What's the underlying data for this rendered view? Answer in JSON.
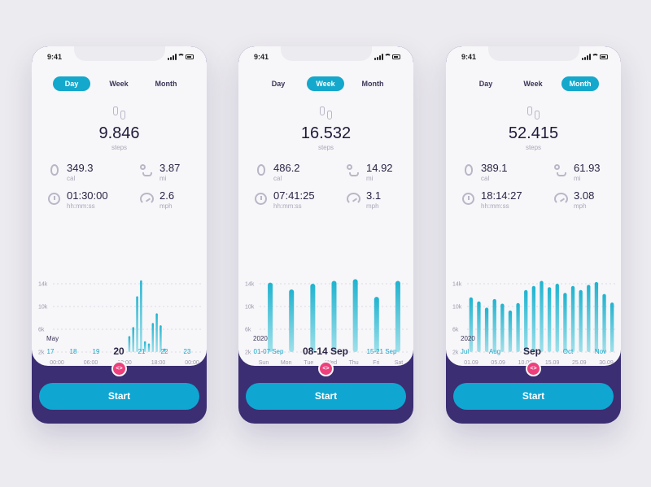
{
  "accent_color": "#13a8cc",
  "bar_color": "#1fb3cf",
  "button_color": "#10a6d2",
  "footer_color": "#3b2e72",
  "toggle_color": "#ee3f7c",
  "icons": [
    "signal-icon",
    "wifi-icon",
    "battery-icon",
    "footsteps-icon",
    "flame-icon",
    "route-icon",
    "stopwatch-icon",
    "speedometer-icon",
    "code-toggle-icon"
  ],
  "phones": [
    {
      "time": "9:41",
      "tabs": [
        {
          "label": "Day"
        },
        {
          "label": "Week"
        },
        {
          "label": "Month"
        }
      ],
      "active_tab": 0,
      "steps": "9.846",
      "steps_label": "steps",
      "stats": [
        {
          "value": "349.3",
          "unit": "cal"
        },
        {
          "value": "3.87",
          "unit": "mi"
        },
        {
          "value": "01:30:00",
          "unit": "hh:mm:ss"
        },
        {
          "value": "2.6",
          "unit": "mph"
        }
      ],
      "period": {
        "year": "May",
        "items": [
          {
            "label": "17"
          },
          {
            "label": "18"
          },
          {
            "label": "19"
          },
          {
            "label": "20"
          },
          {
            "label": "21"
          },
          {
            "label": "22"
          },
          {
            "label": "23"
          }
        ],
        "selected": 3
      },
      "toggle_label": "<>",
      "start_label": "Start"
    },
    {
      "time": "9:41",
      "tabs": [
        {
          "label": "Day"
        },
        {
          "label": "Week"
        },
        {
          "label": "Month"
        }
      ],
      "active_tab": 1,
      "steps": "16.532",
      "steps_label": "steps",
      "stats": [
        {
          "value": "486.2",
          "unit": "cal"
        },
        {
          "value": "14.92",
          "unit": "mi"
        },
        {
          "value": "07:41:25",
          "unit": "hh:mm:ss"
        },
        {
          "value": "3.1",
          "unit": "mph"
        }
      ],
      "period": {
        "year": "2020",
        "items": [
          {
            "label": "01-07 Sep"
          },
          {
            "label": "08-14 Sep"
          },
          {
            "label": "15-21 Sep"
          }
        ],
        "selected": 1
      },
      "toggle_label": "<>",
      "start_label": "Start"
    },
    {
      "time": "9:41",
      "tabs": [
        {
          "label": "Day"
        },
        {
          "label": "Week"
        },
        {
          "label": "Month"
        }
      ],
      "active_tab": 2,
      "steps": "52.415",
      "steps_label": "steps",
      "stats": [
        {
          "value": "389.1",
          "unit": "cal"
        },
        {
          "value": "61.93",
          "unit": "mi"
        },
        {
          "value": "18:14:27",
          "unit": "hh:mm:ss"
        },
        {
          "value": "3.08",
          "unit": "mph"
        }
      ],
      "period": {
        "year": "2020",
        "items": [
          {
            "label": "Jul"
          },
          {
            "label": "Aug"
          },
          {
            "label": "Sep"
          },
          {
            "label": "Oct"
          },
          {
            "label": "Nov"
          }
        ],
        "selected": 2
      },
      "toggle_label": "<>",
      "start_label": "Start"
    }
  ],
  "chart_data": [
    {
      "type": "bar",
      "grid": true,
      "ylim": [
        2000,
        14000
      ],
      "yticks": [
        "14k",
        "10k",
        "6k",
        "2k"
      ],
      "ytick_values": [
        14000,
        10000,
        6000,
        2000
      ],
      "xticks": [
        "00:00",
        "06:00",
        "12:00",
        "18:00",
        "00:00"
      ],
      "values": [
        0,
        0,
        0,
        0,
        0,
        0,
        0,
        0,
        0,
        0,
        0,
        0,
        0,
        0,
        0,
        0,
        0,
        0,
        0,
        4800,
        6400,
        11800,
        14600,
        3900,
        3500,
        7100,
        8800,
        6700,
        2600,
        0,
        0,
        0,
        0,
        0,
        0,
        0,
        0,
        0
      ]
    },
    {
      "type": "bar",
      "grid": true,
      "ylim": [
        2000,
        14000
      ],
      "yticks": [
        "14k",
        "10k",
        "6k",
        "2k"
      ],
      "ytick_values": [
        14000,
        10000,
        6000,
        2000
      ],
      "xticks": [
        "Sun",
        "Mon",
        "Tue",
        "Wed",
        "Thu",
        "Fri",
        "Sat"
      ],
      "values": [
        14200,
        13000,
        14000,
        14500,
        14800,
        11700,
        14500
      ]
    },
    {
      "type": "bar",
      "grid": true,
      "ylim": [
        2000,
        14000
      ],
      "yticks": [
        "14k",
        "10k",
        "6k",
        "2k"
      ],
      "ytick_values": [
        14000,
        10000,
        6000,
        2000
      ],
      "xticks": [
        "01.09",
        "05.09",
        "10.09",
        "15.09",
        "25.09",
        "30.09"
      ],
      "values": [
        11600,
        10900,
        9800,
        11300,
        10500,
        9300,
        10600,
        12900,
        13600,
        14500,
        13400,
        14000,
        12400,
        13600,
        12900,
        13800,
        14300,
        12200,
        10700
      ]
    }
  ]
}
